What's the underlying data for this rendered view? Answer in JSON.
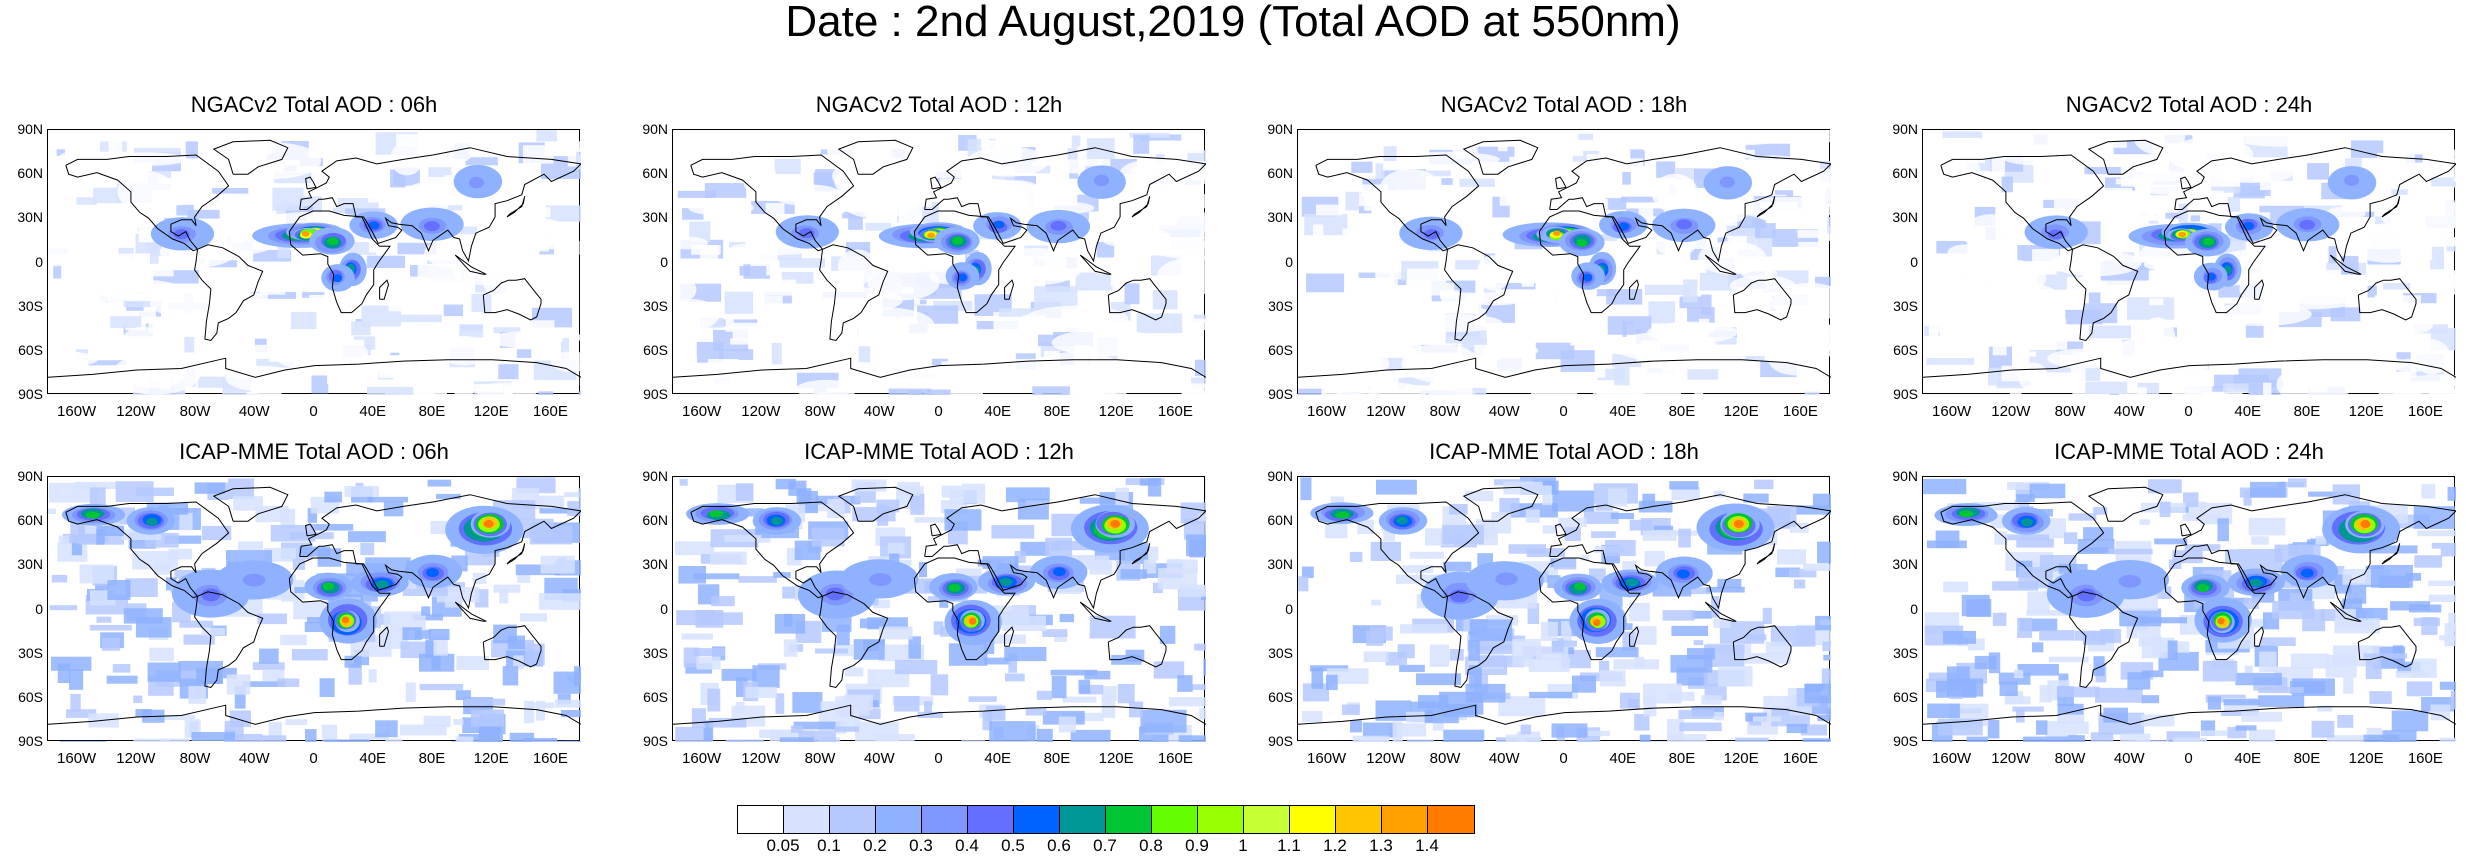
{
  "title": "Date : 2nd August,2019 (Total AOD at 550nm)",
  "panels": [
    {
      "title": "NGACv2 Total AOD : 06h",
      "model": "ngac"
    },
    {
      "title": "NGACv2 Total AOD : 12h",
      "model": "ngac"
    },
    {
      "title": "NGACv2 Total AOD : 18h",
      "model": "ngac"
    },
    {
      "title": "NGACv2 Total AOD : 24h",
      "model": "ngac"
    },
    {
      "title": "ICAP-MME Total AOD : 06h",
      "model": "icap"
    },
    {
      "title": "ICAP-MME Total AOD : 12h",
      "model": "icap"
    },
    {
      "title": "ICAP-MME Total AOD : 18h",
      "model": "icap"
    },
    {
      "title": "ICAP-MME Total AOD : 24h",
      "model": "icap"
    }
  ],
  "lat_labels": [
    "90N",
    "60N",
    "30N",
    "0",
    "30S",
    "60S",
    "90S"
  ],
  "lon_labels": [
    "160W",
    "120W",
    "80W",
    "40W",
    "0",
    "40E",
    "80E",
    "120E",
    "160E"
  ],
  "colorbar": {
    "labels": [
      "0.05",
      "0.1",
      "0.2",
      "0.3",
      "0.4",
      "0.5",
      "0.6",
      "0.7",
      "0.8",
      "0.9",
      "1",
      "1.1",
      "1.2",
      "1.3",
      "1.4"
    ],
    "colors": [
      "#ffffff",
      "#d6e2ff",
      "#b5c9ff",
      "#8eb2ff",
      "#7f96ff",
      "#6370ff",
      "#0063ff",
      "#009696",
      "#00c633",
      "#63ff00",
      "#96ff00",
      "#c6ff33",
      "#ffff00",
      "#ffc600",
      "#ffa000",
      "#ff7c00",
      "#ff1900"
    ]
  }
}
